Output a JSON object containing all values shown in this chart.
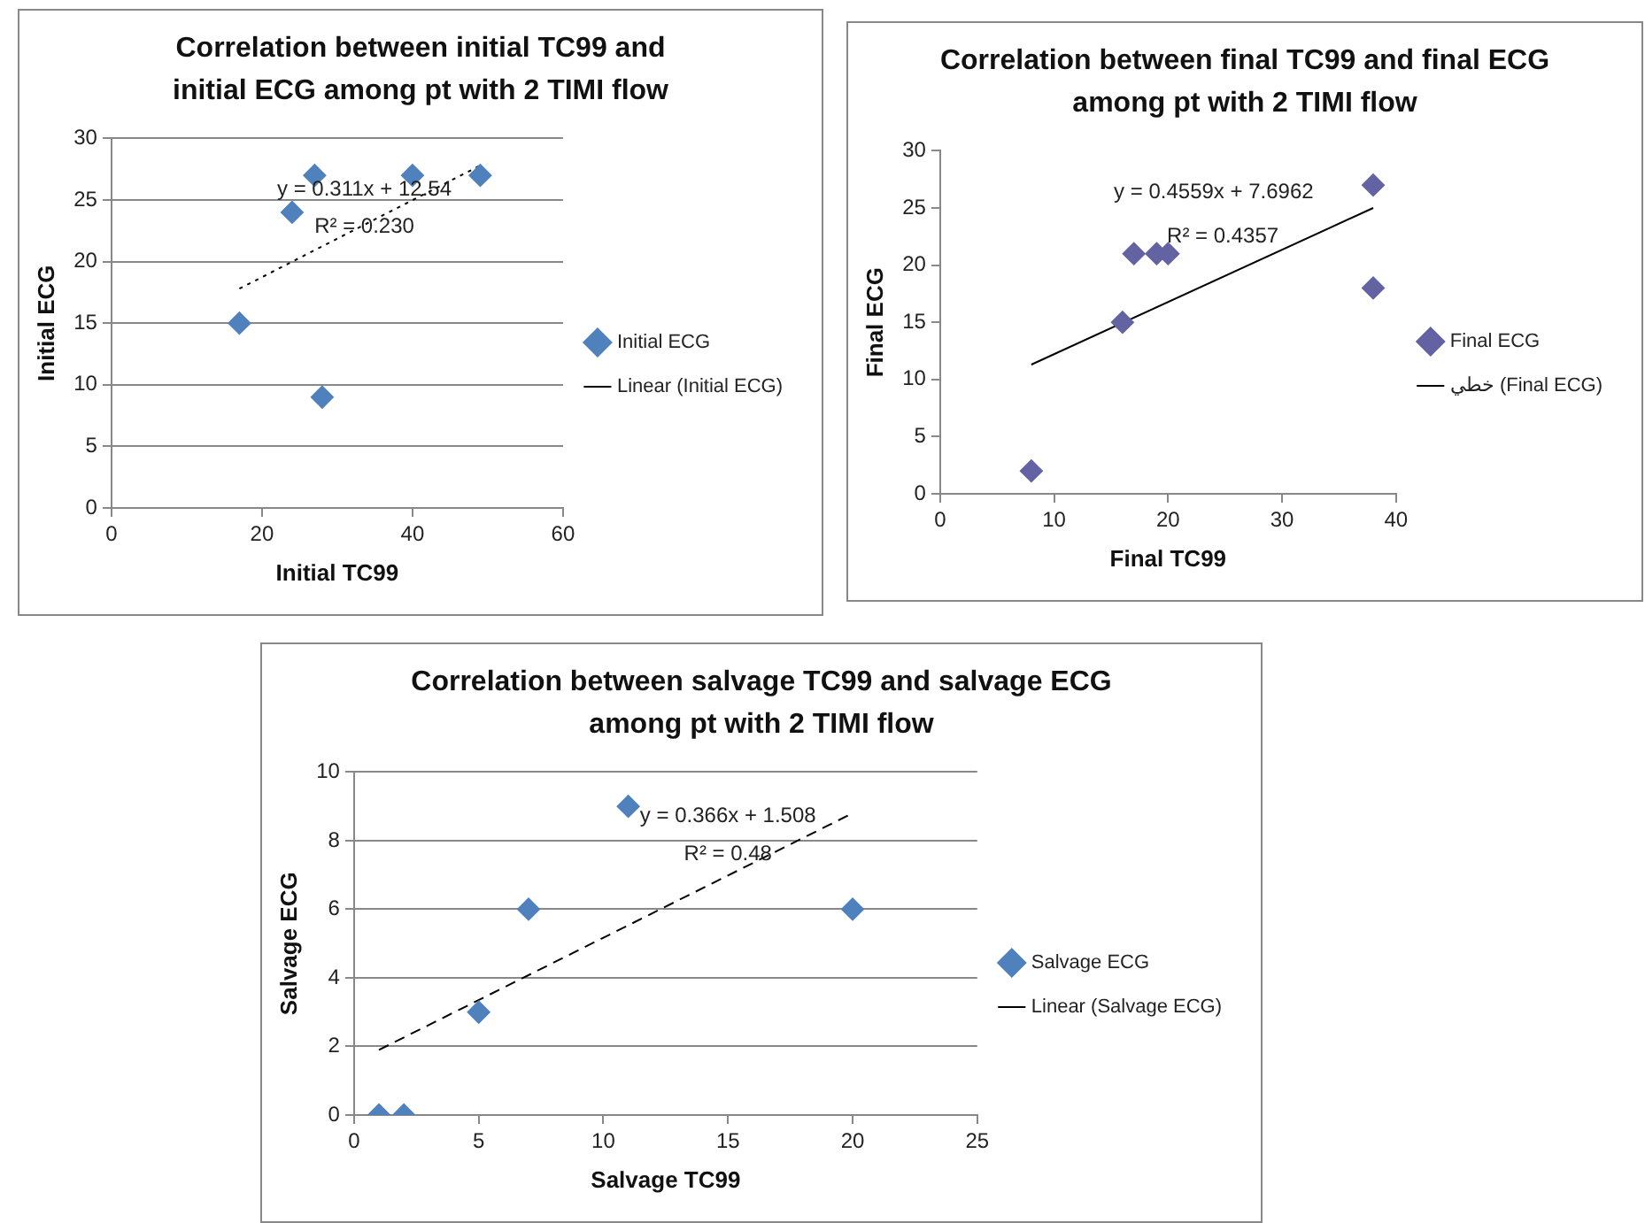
{
  "chart_data": [
    {
      "type": "scatter",
      "title": "Correlation between initial TC99 and initial ECG among pt with 2 TIMI flow",
      "xlabel": "Initial TC99",
      "ylabel": "Initial ECG",
      "xlim": [
        0,
        60
      ],
      "xticks": [
        0,
        20,
        40,
        60
      ],
      "ylim": [
        0,
        30
      ],
      "yticks": [
        0,
        5,
        10,
        15,
        20,
        25,
        30
      ],
      "grid": "y",
      "legend": "right",
      "annotations": [
        "y = 0.311x + 12.54",
        "R² = 0.230"
      ],
      "series": [
        {
          "name": "Initial ECG",
          "color": "#4f81bd",
          "marker": "diamond",
          "x": [
            17,
            24,
            27,
            28,
            40,
            49
          ],
          "values": [
            15,
            24,
            27,
            9,
            27,
            27
          ]
        },
        {
          "name": "Linear (Initial ECG)",
          "type": "line",
          "color": "#000000",
          "marker": "none",
          "line_style": "dotted",
          "x": [
            17,
            49
          ],
          "values": [
            17.8,
            27.8
          ]
        }
      ]
    },
    {
      "type": "scatter",
      "title": "Correlation between final TC99 and final ECG among pt with 2 TIMI flow",
      "xlabel": "Final TC99",
      "ylabel": "Final ECG",
      "xlim": [
        0,
        40
      ],
      "xticks": [
        0,
        10,
        20,
        30,
        40
      ],
      "ylim": [
        0,
        30
      ],
      "yticks": [
        0,
        5,
        10,
        15,
        20,
        25,
        30
      ],
      "grid": false,
      "legend": "right",
      "annotations": [
        "y = 0.4559x + 7.6962",
        "R² = 0.4357"
      ],
      "series": [
        {
          "name": "Final ECG",
          "color": "#6363a3",
          "marker": "diamond",
          "x": [
            8,
            16,
            17,
            19,
            20,
            38,
            38
          ],
          "values": [
            2,
            15,
            21,
            21,
            21,
            27,
            18
          ]
        },
        {
          "name": "خطي (Final ECG)",
          "type": "line",
          "color": "#000000",
          "marker": "none",
          "line_style": "solid",
          "x": [
            8,
            38
          ],
          "values": [
            11.3,
            25
          ]
        }
      ]
    },
    {
      "type": "scatter",
      "title": "Correlation between salvage TC99 and salvage ECG among pt with 2 TIMI flow",
      "xlabel": "Salvage TC99",
      "ylabel": "Salvage ECG",
      "xlim": [
        0,
        25
      ],
      "xticks": [
        0,
        5,
        10,
        15,
        20,
        25
      ],
      "ylim": [
        0,
        10
      ],
      "yticks": [
        0,
        2,
        4,
        6,
        8,
        10
      ],
      "grid": "y",
      "legend": "right",
      "annotations": [
        "y = 0.366x + 1.508",
        "R² = 0.48"
      ],
      "series": [
        {
          "name": "Salvage ECG",
          "color": "#4f81bd",
          "marker": "diamond",
          "x": [
            1,
            2,
            5,
            7,
            11,
            20
          ],
          "values": [
            0,
            0,
            3,
            6,
            9,
            6
          ]
        },
        {
          "name": "Linear (Salvage ECG)",
          "type": "line",
          "color": "#000000",
          "marker": "none",
          "line_style": "dashed",
          "x": [
            1,
            20
          ],
          "values": [
            1.9,
            8.8
          ]
        }
      ]
    }
  ]
}
